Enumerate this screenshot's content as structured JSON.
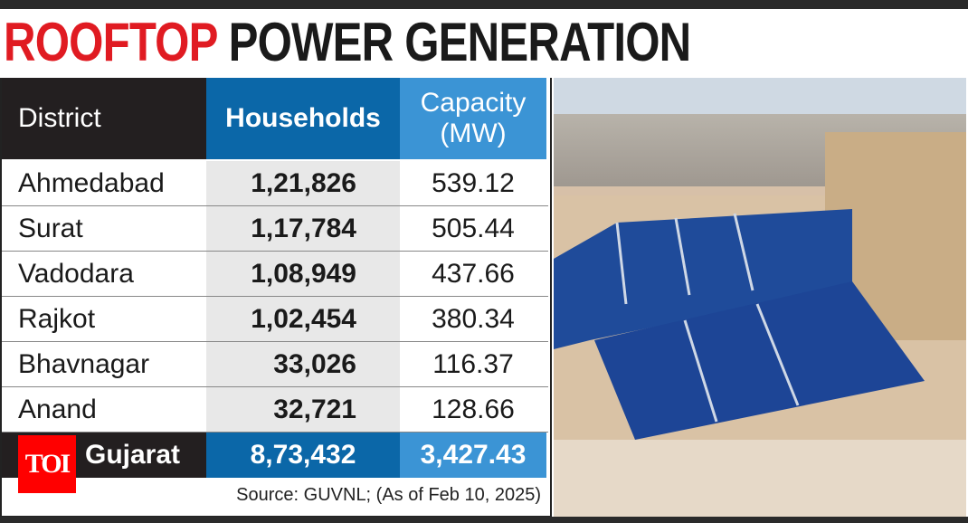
{
  "title": {
    "part1": "ROOFTOP",
    "part2": "POWER GENERATION"
  },
  "chart_data": {
    "type": "table",
    "columns": [
      "District",
      "Households",
      "Capacity (MW)"
    ],
    "rows": [
      {
        "district": "Ahmedabad",
        "households": "1,21,826",
        "capacity": "539.12"
      },
      {
        "district": "Surat",
        "households": "1,17,784",
        "capacity": "505.44"
      },
      {
        "district": "Vadodara",
        "households": "1,08,949",
        "capacity": "437.66"
      },
      {
        "district": "Rajkot",
        "households": "1,02,454",
        "capacity": "380.34"
      },
      {
        "district": "Bhavnagar",
        "households": "33,026",
        "capacity": "116.37"
      },
      {
        "district": "Anand",
        "households": "32,721",
        "capacity": "128.66"
      }
    ],
    "total": {
      "district": "Gujarat",
      "households": "8,73,432",
      "capacity": "3,427.43"
    }
  },
  "header": {
    "c1": "District",
    "c2": "Households",
    "c3a": "Capacity",
    "c3b": "(MW)"
  },
  "source": "Source: GUVNL; (As of Feb 10, 2025)",
  "logo": "TOI",
  "colors": {
    "title_red": "#e01b22",
    "households_blue": "#0b67a8",
    "capacity_blue": "#3b94d5",
    "dark": "#231f20"
  }
}
